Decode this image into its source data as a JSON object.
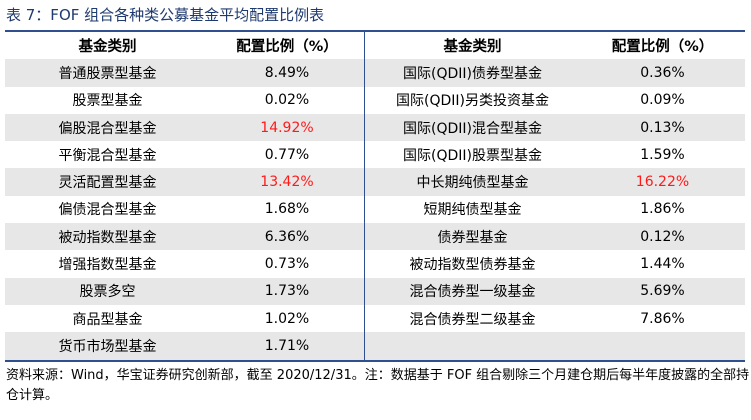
{
  "title": "表 7：FOF 组合各种类公募基金平均配置比例表",
  "headers": {
    "category": "基金类别",
    "ratio": "配置比例（%）"
  },
  "left_rows": [
    {
      "category": "普通股票型基金",
      "ratio": "8.49%",
      "highlight": false
    },
    {
      "category": "股票型基金",
      "ratio": "0.02%",
      "highlight": false
    },
    {
      "category": "偏股混合型基金",
      "ratio": "14.92%",
      "highlight": true
    },
    {
      "category": "平衡混合型基金",
      "ratio": "0.77%",
      "highlight": false
    },
    {
      "category": "灵活配置型基金",
      "ratio": "13.42%",
      "highlight": true
    },
    {
      "category": "偏债混合型基金",
      "ratio": "1.68%",
      "highlight": false
    },
    {
      "category": "被动指数型基金",
      "ratio": "6.36%",
      "highlight": false
    },
    {
      "category": "增强指数型基金",
      "ratio": "0.73%",
      "highlight": false
    },
    {
      "category": "股票多空",
      "ratio": "1.73%",
      "highlight": false
    },
    {
      "category": "商品型基金",
      "ratio": "1.02%",
      "highlight": false
    },
    {
      "category": "货币市场型基金",
      "ratio": "1.71%",
      "highlight": false
    }
  ],
  "right_rows": [
    {
      "category": "国际(QDII)债券型基金",
      "ratio": "0.36%",
      "highlight": false
    },
    {
      "category": "国际(QDII)另类投资基金",
      "ratio": "0.09%",
      "highlight": false
    },
    {
      "category": "国际(QDII)混合型基金",
      "ratio": "0.13%",
      "highlight": false
    },
    {
      "category": "国际(QDII)股票型基金",
      "ratio": "1.59%",
      "highlight": false
    },
    {
      "category": "中长期纯债型基金",
      "ratio": "16.22%",
      "highlight": true
    },
    {
      "category": "短期纯债型基金",
      "ratio": "1.86%",
      "highlight": false
    },
    {
      "category": "债券型基金",
      "ratio": "0.12%",
      "highlight": false
    },
    {
      "category": "被动指数型债券基金",
      "ratio": "1.44%",
      "highlight": false
    },
    {
      "category": "混合债券型一级基金",
      "ratio": "5.69%",
      "highlight": false
    },
    {
      "category": "混合债券型二级基金",
      "ratio": "7.86%",
      "highlight": false
    },
    {
      "category": "",
      "ratio": "",
      "highlight": false
    }
  ],
  "note": "资料来源：Wind，华宝证券研究创新部，截至 2020/12/31。注：数据基于 FOF 组合剔除三个月建仓期后每半年度披露的全部持仓计算。",
  "colors": {
    "highlight": "#ff1a1a",
    "rule": "#2f4f8f",
    "shade": "#e7e7e7"
  }
}
